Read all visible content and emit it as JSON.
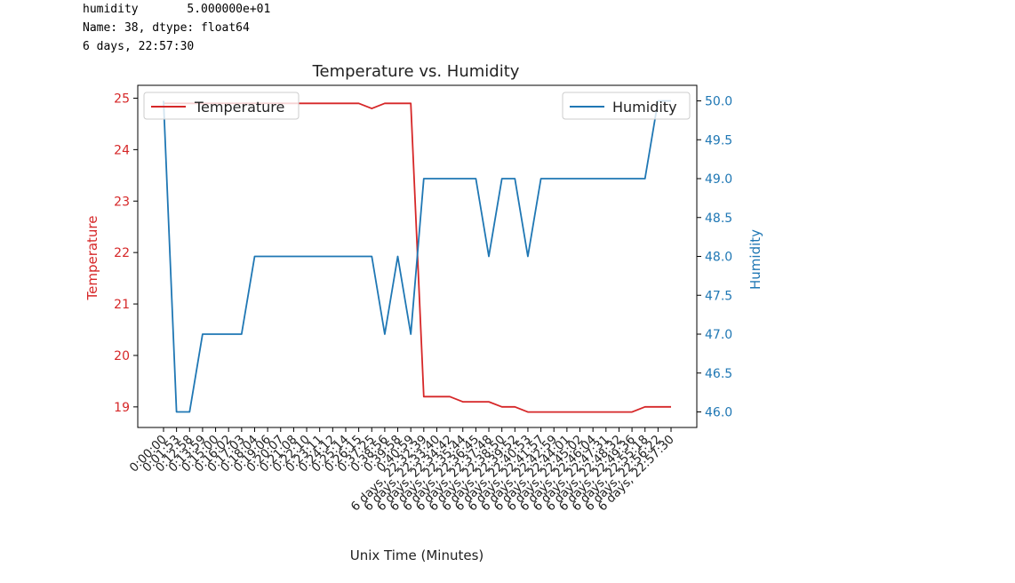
{
  "console": {
    "lines": [
      "humidity       5.000000e+01",
      "Name: 38, dtype: float64",
      "6 days, 22:57:30"
    ]
  },
  "colors": {
    "temperature": "#d62728",
    "humidity": "#1f77b4",
    "axis": "#000000"
  },
  "chart_data": {
    "type": "line",
    "title": "Temperature vs. Humidity",
    "xlabel": "Unix Time (Minutes)",
    "ylabel_left": "Temperature",
    "ylabel_right": "Humidity",
    "ylim_left": [
      18.6,
      25.25
    ],
    "ylim_right": [
      45.8,
      50.2
    ],
    "yticks_left": [
      19,
      20,
      21,
      22,
      23,
      24,
      25
    ],
    "yticks_right": [
      46.0,
      46.5,
      47.0,
      47.5,
      48.0,
      48.5,
      49.0,
      49.5,
      50.0
    ],
    "x": [
      "0:00:00",
      "0:01:53",
      "0:12:58",
      "0:13:59",
      "0:15:00",
      "0:16:02",
      "0:17:03",
      "0:18:04",
      "0:19:06",
      "0:20:07",
      "0:21:08",
      "0:22:10",
      "0:23:11",
      "0:24:12",
      "0:25:14",
      "0:26:15",
      "0:37:25",
      "0:38:56",
      "0:39:58",
      "0:40:59",
      "6 days, 22:32:39",
      "6 days, 22:33:40",
      "6 days, 22:34:42",
      "6 days, 22:35:44",
      "6 days, 22:36:45",
      "6 days, 22:37:48",
      "6 days, 22:38:50",
      "6 days, 22:39:52",
      "6 days, 22:40:53",
      "6 days, 22:41:57",
      "6 days, 22:42:59",
      "6 days, 22:44:01",
      "6 days, 22:45:02",
      "6 days, 22:46:04",
      "6 days, 22:47:31",
      "6 days, 22:48:32",
      "6 days, 22:49:36",
      "6 days, 22:55:18",
      "6 days, 22:56:22",
      "6 days, 22:57:30"
    ],
    "xtick_labels": [
      "0:00:00",
      "0:01:53",
      "0:12:58",
      "0:13:59",
      "0:15:00",
      "0:16:02",
      "0:17:03",
      "0:18:04",
      "0:19:06",
      "0:20:07",
      "0:21:08",
      "0:22:10",
      "0:23:11",
      "0:24:12",
      "0:25:14",
      "0:26:15",
      "0:37:25",
      "0:38:56",
      "0:39:58",
      "0:40:59",
      "6 days, 22:32:39",
      "6 days, 22:33:40",
      "6 days, 22:34:42",
      "6 days, 22:35:44",
      "6 days, 22:36:45",
      "6 days, 22:37:48",
      "6 days, 22:38:50",
      "6 days, 22:39:52",
      "6 days, 22:40:53",
      "6 days, 22:41:57",
      "6 days, 22:42:59",
      "6 days, 22:44:01",
      "6 days, 22:45:02",
      "6 days, 22:46:04",
      "6 days, 22:47:31",
      "6 days, 22:48:32",
      "6 days, 22:49:36",
      "6 days, 22:55:18",
      "6 days, 22:56:22",
      "6 days, 22:57:30"
    ],
    "series": [
      {
        "name": "Temperature",
        "axis": "left",
        "values": [
          24.9,
          24.9,
          24.9,
          24.9,
          24.9,
          24.9,
          24.9,
          24.9,
          24.9,
          24.9,
          24.9,
          24.9,
          24.9,
          24.9,
          24.9,
          24.9,
          24.8,
          24.9,
          24.9,
          24.9,
          19.2,
          19.2,
          19.2,
          19.1,
          19.1,
          19.1,
          19.0,
          19.0,
          18.9,
          18.9,
          18.9,
          18.9,
          18.9,
          18.9,
          18.9,
          18.9,
          18.9,
          19.0,
          19.0,
          19.0
        ]
      },
      {
        "name": "Humidity",
        "axis": "right",
        "values": [
          50,
          46,
          46,
          47,
          47,
          47,
          47,
          48,
          48,
          48,
          48,
          48,
          48,
          48,
          48,
          48,
          48,
          47,
          48,
          47,
          49,
          49,
          49,
          49,
          49,
          48,
          49,
          49,
          48,
          49,
          49,
          49,
          49,
          49,
          49,
          49,
          49,
          49,
          50,
          50
        ]
      }
    ],
    "legend": [
      {
        "label": "Temperature",
        "placement": "upper-left"
      },
      {
        "label": "Humidity",
        "placement": "upper-right"
      }
    ],
    "grid": false
  }
}
